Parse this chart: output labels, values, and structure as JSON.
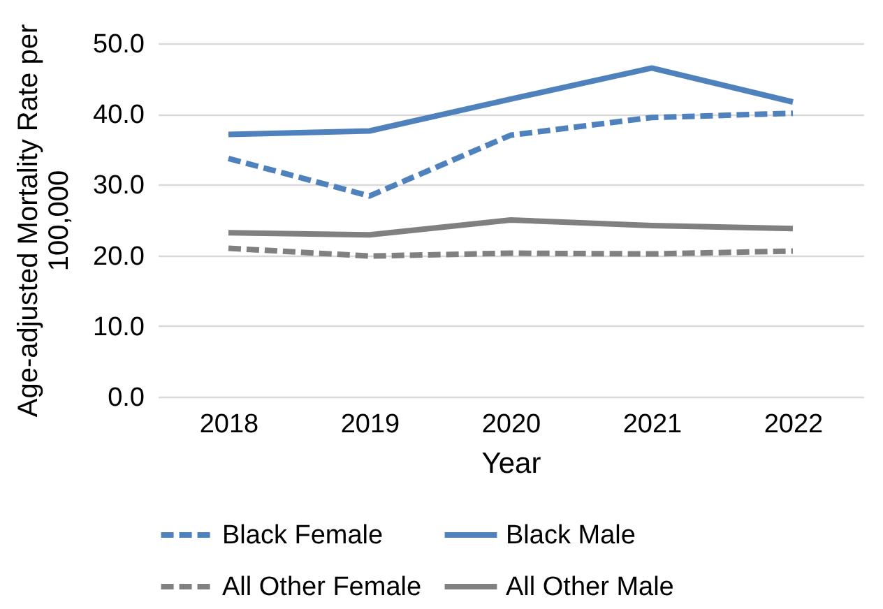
{
  "chart_data": {
    "type": "line",
    "xlabel": "Year",
    "ylabel": "Age-adjusted Mortality Rate per 100,000",
    "categories": [
      "2018",
      "2019",
      "2020",
      "2021",
      "2022"
    ],
    "series": [
      {
        "name": "Black Female",
        "color": "#4f81bd",
        "line_style": "dashed",
        "values": [
          33.7,
          28.4,
          37.0,
          39.5,
          40.1
        ]
      },
      {
        "name": "Black Male",
        "color": "#4f81bd",
        "line_style": "solid",
        "values": [
          37.1,
          37.6,
          42.1,
          46.5,
          41.7
        ]
      },
      {
        "name": "All Other Female",
        "color": "#808080",
        "line_style": "dashed",
        "values": [
          21.0,
          19.9,
          20.3,
          20.2,
          20.6
        ]
      },
      {
        "name": "All Other Male",
        "color": "#808080",
        "line_style": "solid",
        "values": [
          23.2,
          22.9,
          25.0,
          24.2,
          23.8
        ]
      }
    ],
    "ylim": [
      0,
      50
    ],
    "yticks": [
      {
        "value": 0,
        "label": "0.0"
      },
      {
        "value": 10,
        "label": "10.0"
      },
      {
        "value": 20,
        "label": "20.0"
      },
      {
        "value": 30,
        "label": "30.0"
      },
      {
        "value": 40,
        "label": "40.0"
      },
      {
        "value": 50,
        "label": "50.0"
      }
    ],
    "grid": "y",
    "legend": "bottom",
    "marker": "none"
  }
}
